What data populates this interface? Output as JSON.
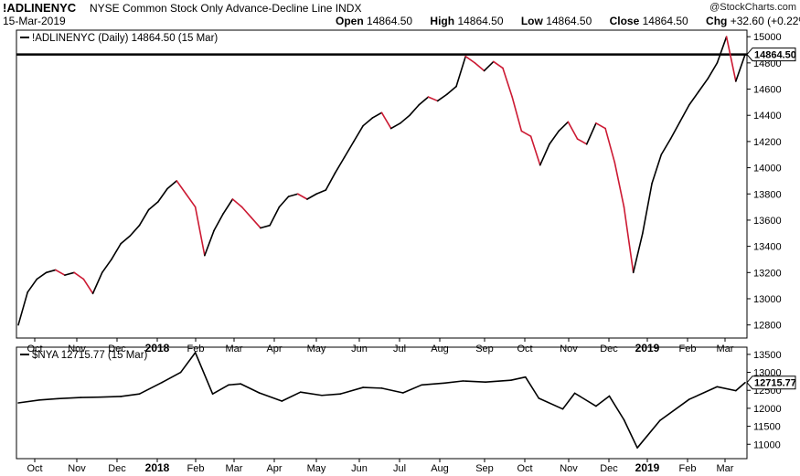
{
  "header": {
    "symbol": "!ADLINENYC",
    "description": "NYSE Common Stock Only Advance-Decline Line",
    "exchange": "INDX",
    "date": "15-Mar-2019",
    "open_label": "Open",
    "open": "14864.50",
    "high_label": "High",
    "high": "14864.50",
    "low_label": "Low",
    "low": "14864.50",
    "close_label": "Close",
    "close": "14864.50",
    "chg_label": "Chg",
    "chg": "+32.60 (+0.22%)",
    "brand": "@StockCharts.com"
  },
  "colors": {
    "up": "#000000",
    "down": "#cc1a33",
    "line": "#000000",
    "background": "#ffffff",
    "grid": "#d8d8d8"
  },
  "chart_data": [
    {
      "type": "line",
      "legend": "!ADLINENYC (Daily) 14864.50 (15 Mar)",
      "last_value_label": "14864.50",
      "reference_line": 14864.5,
      "ylim": [
        12700,
        15050
      ],
      "yticks": [
        12800,
        13000,
        13200,
        13400,
        13600,
        13800,
        14000,
        14200,
        14400,
        14600,
        14800,
        15000
      ],
      "grid": false,
      "x_ticks": [
        "Oct",
        "Nov",
        "Dec",
        "2018",
        "Feb",
        "Mar",
        "Apr",
        "May",
        "Jun",
        "Jul",
        "Aug",
        "Sep",
        "Oct",
        "Nov",
        "Dec",
        "2019",
        "Feb",
        "Mar"
      ],
      "x": [
        "2017-09-15",
        "2017-09-22",
        "2017-09-29",
        "2017-10-06",
        "2017-10-13",
        "2017-10-20",
        "2017-10-27",
        "2017-11-03",
        "2017-11-10",
        "2017-11-17",
        "2017-11-24",
        "2017-12-01",
        "2017-12-08",
        "2017-12-15",
        "2017-12-22",
        "2017-12-29",
        "2018-01-05",
        "2018-01-12",
        "2018-01-19",
        "2018-01-26",
        "2018-02-02",
        "2018-02-09",
        "2018-02-16",
        "2018-02-23",
        "2018-03-02",
        "2018-03-09",
        "2018-03-16",
        "2018-03-23",
        "2018-03-30",
        "2018-04-06",
        "2018-04-13",
        "2018-04-20",
        "2018-04-27",
        "2018-05-04",
        "2018-05-11",
        "2018-05-18",
        "2018-05-25",
        "2018-06-01",
        "2018-06-08",
        "2018-06-15",
        "2018-06-22",
        "2018-06-29",
        "2018-07-06",
        "2018-07-13",
        "2018-07-20",
        "2018-07-27",
        "2018-08-03",
        "2018-08-10",
        "2018-08-17",
        "2018-08-24",
        "2018-08-31",
        "2018-09-07",
        "2018-09-14",
        "2018-09-21",
        "2018-09-28",
        "2018-10-05",
        "2018-10-12",
        "2018-10-19",
        "2018-10-26",
        "2018-11-02",
        "2018-11-09",
        "2018-11-16",
        "2018-11-23",
        "2018-11-30",
        "2018-12-07",
        "2018-12-14",
        "2018-12-21",
        "2018-12-28",
        "2019-01-04",
        "2019-01-11",
        "2019-01-18",
        "2019-01-25",
        "2019-02-01",
        "2019-02-08",
        "2019-02-15",
        "2019-02-22",
        "2019-03-01",
        "2019-03-08",
        "2019-03-15"
      ],
      "values": [
        12800,
        13050,
        13150,
        13200,
        13220,
        13180,
        13200,
        13150,
        13040,
        13200,
        13300,
        13420,
        13480,
        13560,
        13680,
        13740,
        13840,
        13900,
        13800,
        13700,
        13330,
        13520,
        13650,
        13760,
        13700,
        13620,
        13540,
        13560,
        13700,
        13780,
        13800,
        13760,
        13800,
        13830,
        13960,
        14080,
        14200,
        14320,
        14380,
        14420,
        14300,
        14340,
        14400,
        14480,
        14540,
        14510,
        14560,
        14620,
        14850,
        14800,
        14740,
        14810,
        14760,
        14540,
        14280,
        14240,
        14020,
        14180,
        14280,
        14350,
        14220,
        14180,
        14340,
        14300,
        14040,
        13700,
        13200,
        13500,
        13880,
        14100,
        14220,
        14350,
        14480,
        14580,
        14680,
        14800,
        15000,
        14660,
        14864.5
      ]
    },
    {
      "type": "line",
      "legend": "$NYA 12715.77 (15 Mar)",
      "last_value_label": "12715.77",
      "ylim": [
        10600,
        13700
      ],
      "yticks": [
        11000,
        11500,
        12000,
        12500,
        13000,
        13500
      ],
      "grid": false,
      "x_ticks": [
        "Oct",
        "Nov",
        "Dec",
        "2018",
        "Feb",
        "Mar",
        "Apr",
        "May",
        "Jun",
        "Jul",
        "Aug",
        "Sep",
        "Oct",
        "Nov",
        "Dec",
        "2019",
        "Feb",
        "Mar"
      ],
      "x": [
        "2017-09-15",
        "2017-10-01",
        "2017-10-15",
        "2017-11-01",
        "2017-11-15",
        "2017-12-01",
        "2017-12-15",
        "2018-01-01",
        "2018-01-15",
        "2018-01-26",
        "2018-02-08",
        "2018-02-20",
        "2018-03-01",
        "2018-03-15",
        "2018-04-01",
        "2018-04-15",
        "2018-05-01",
        "2018-05-15",
        "2018-06-01",
        "2018-06-15",
        "2018-07-01",
        "2018-07-15",
        "2018-08-01",
        "2018-08-15",
        "2018-09-01",
        "2018-09-20",
        "2018-10-01",
        "2018-10-11",
        "2018-10-29",
        "2018-11-07",
        "2018-11-23",
        "2018-12-03",
        "2018-12-14",
        "2018-12-24",
        "2019-01-10",
        "2019-02-01",
        "2019-02-22",
        "2019-03-08",
        "2019-03-15"
      ],
      "values": [
        12150,
        12230,
        12270,
        12300,
        12310,
        12330,
        12400,
        12720,
        13000,
        13550,
        12400,
        12650,
        12680,
        12430,
        12200,
        12450,
        12360,
        12400,
        12580,
        12560,
        12430,
        12650,
        12700,
        12760,
        12730,
        12780,
        12870,
        12280,
        11980,
        12420,
        12060,
        12340,
        11680,
        10900,
        11660,
        12250,
        12600,
        12490,
        12715.77
      ]
    }
  ]
}
